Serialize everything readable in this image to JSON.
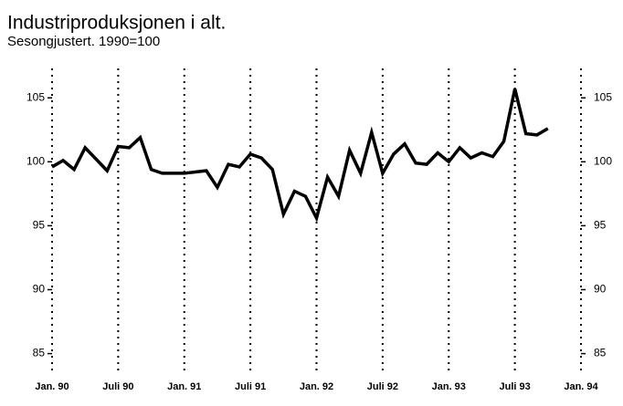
{
  "chart_data": {
    "type": "line",
    "title": "Industriproduksjonen i alt.",
    "subtitle": "Sesongjustert. 1990=100",
    "categories": [
      "Jan. 90",
      null,
      null,
      null,
      null,
      null,
      "Juli 90",
      null,
      null,
      null,
      null,
      null,
      "Jan. 91",
      null,
      null,
      null,
      null,
      null,
      "Juli 91",
      null,
      null,
      null,
      null,
      null,
      "Jan. 92",
      null,
      null,
      null,
      null,
      null,
      "Juli 92",
      null,
      null,
      null,
      null,
      null,
      "Jan. 93",
      null,
      null,
      null,
      null,
      null,
      "Juli 93",
      null,
      null,
      null,
      null,
      null,
      "Jan. 94"
    ],
    "values": [
      99.6,
      100.1,
      99.4,
      101.1,
      100.2,
      99.3,
      101.2,
      101.1,
      101.9,
      99.4,
      99.1,
      99.1,
      99.1,
      99.2,
      99.3,
      98.0,
      99.8,
      99.6,
      100.6,
      100.3,
      99.4,
      95.9,
      97.7,
      97.3,
      95.6,
      98.8,
      97.3,
      100.9,
      99.1,
      102.3,
      99.1,
      100.6,
      101.4,
      99.9,
      99.8,
      100.7,
      100.0,
      101.1,
      100.3,
      100.7,
      100.4,
      101.6,
      105.7,
      102.2,
      102.1,
      102.6,
      null,
      null,
      null
    ],
    "color": "#000000",
    "ylim": [
      83.4,
      107.3
    ],
    "yticks": [
      85,
      90,
      95,
      100,
      105
    ],
    "grid": true
  }
}
